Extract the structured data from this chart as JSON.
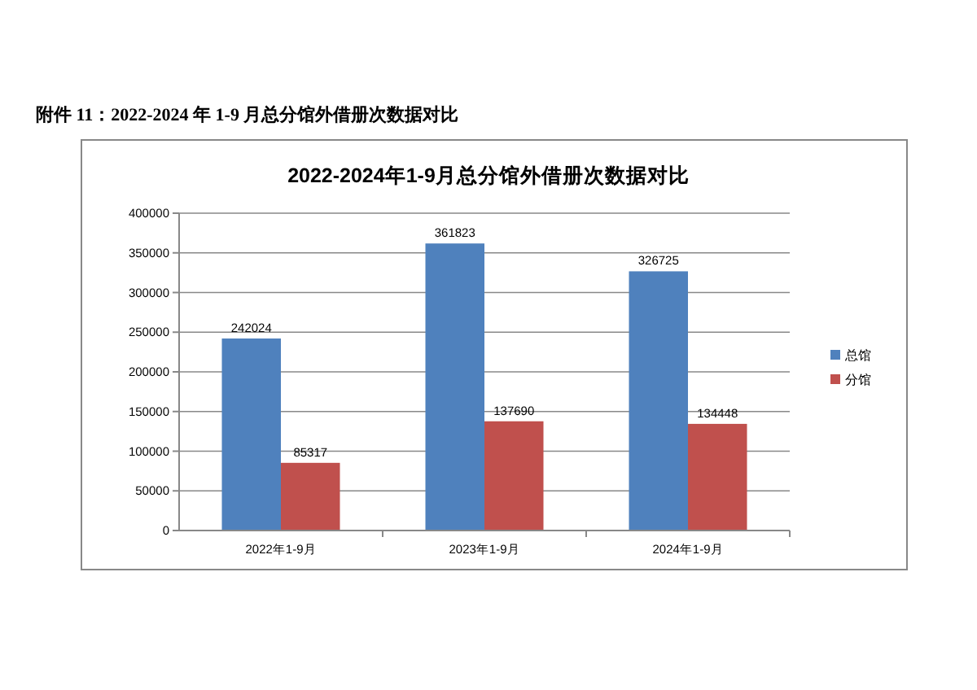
{
  "chart_data": {
    "type": "bar",
    "title": "2022-2024年1-9月总分馆外借册次数据对比",
    "annotations": [
      "附件 11：2022-2024 年 1-9 月总分馆外借册次数据对比"
    ],
    "categories": [
      "2022年1-9月",
      "2023年1-9月",
      "2024年1-9月"
    ],
    "series": [
      {
        "name": "总馆",
        "color": "#4f81bd",
        "values": [
          242024,
          361823,
          326725
        ]
      },
      {
        "name": "分馆",
        "color": "#c0504d",
        "values": [
          85317,
          137690,
          134448
        ]
      }
    ],
    "ylim": [
      0,
      400000
    ],
    "yticks": [
      0,
      50000,
      100000,
      150000,
      200000,
      250000,
      300000,
      350000,
      400000
    ],
    "grid": "y",
    "legend": "right",
    "data_labels": true
  }
}
